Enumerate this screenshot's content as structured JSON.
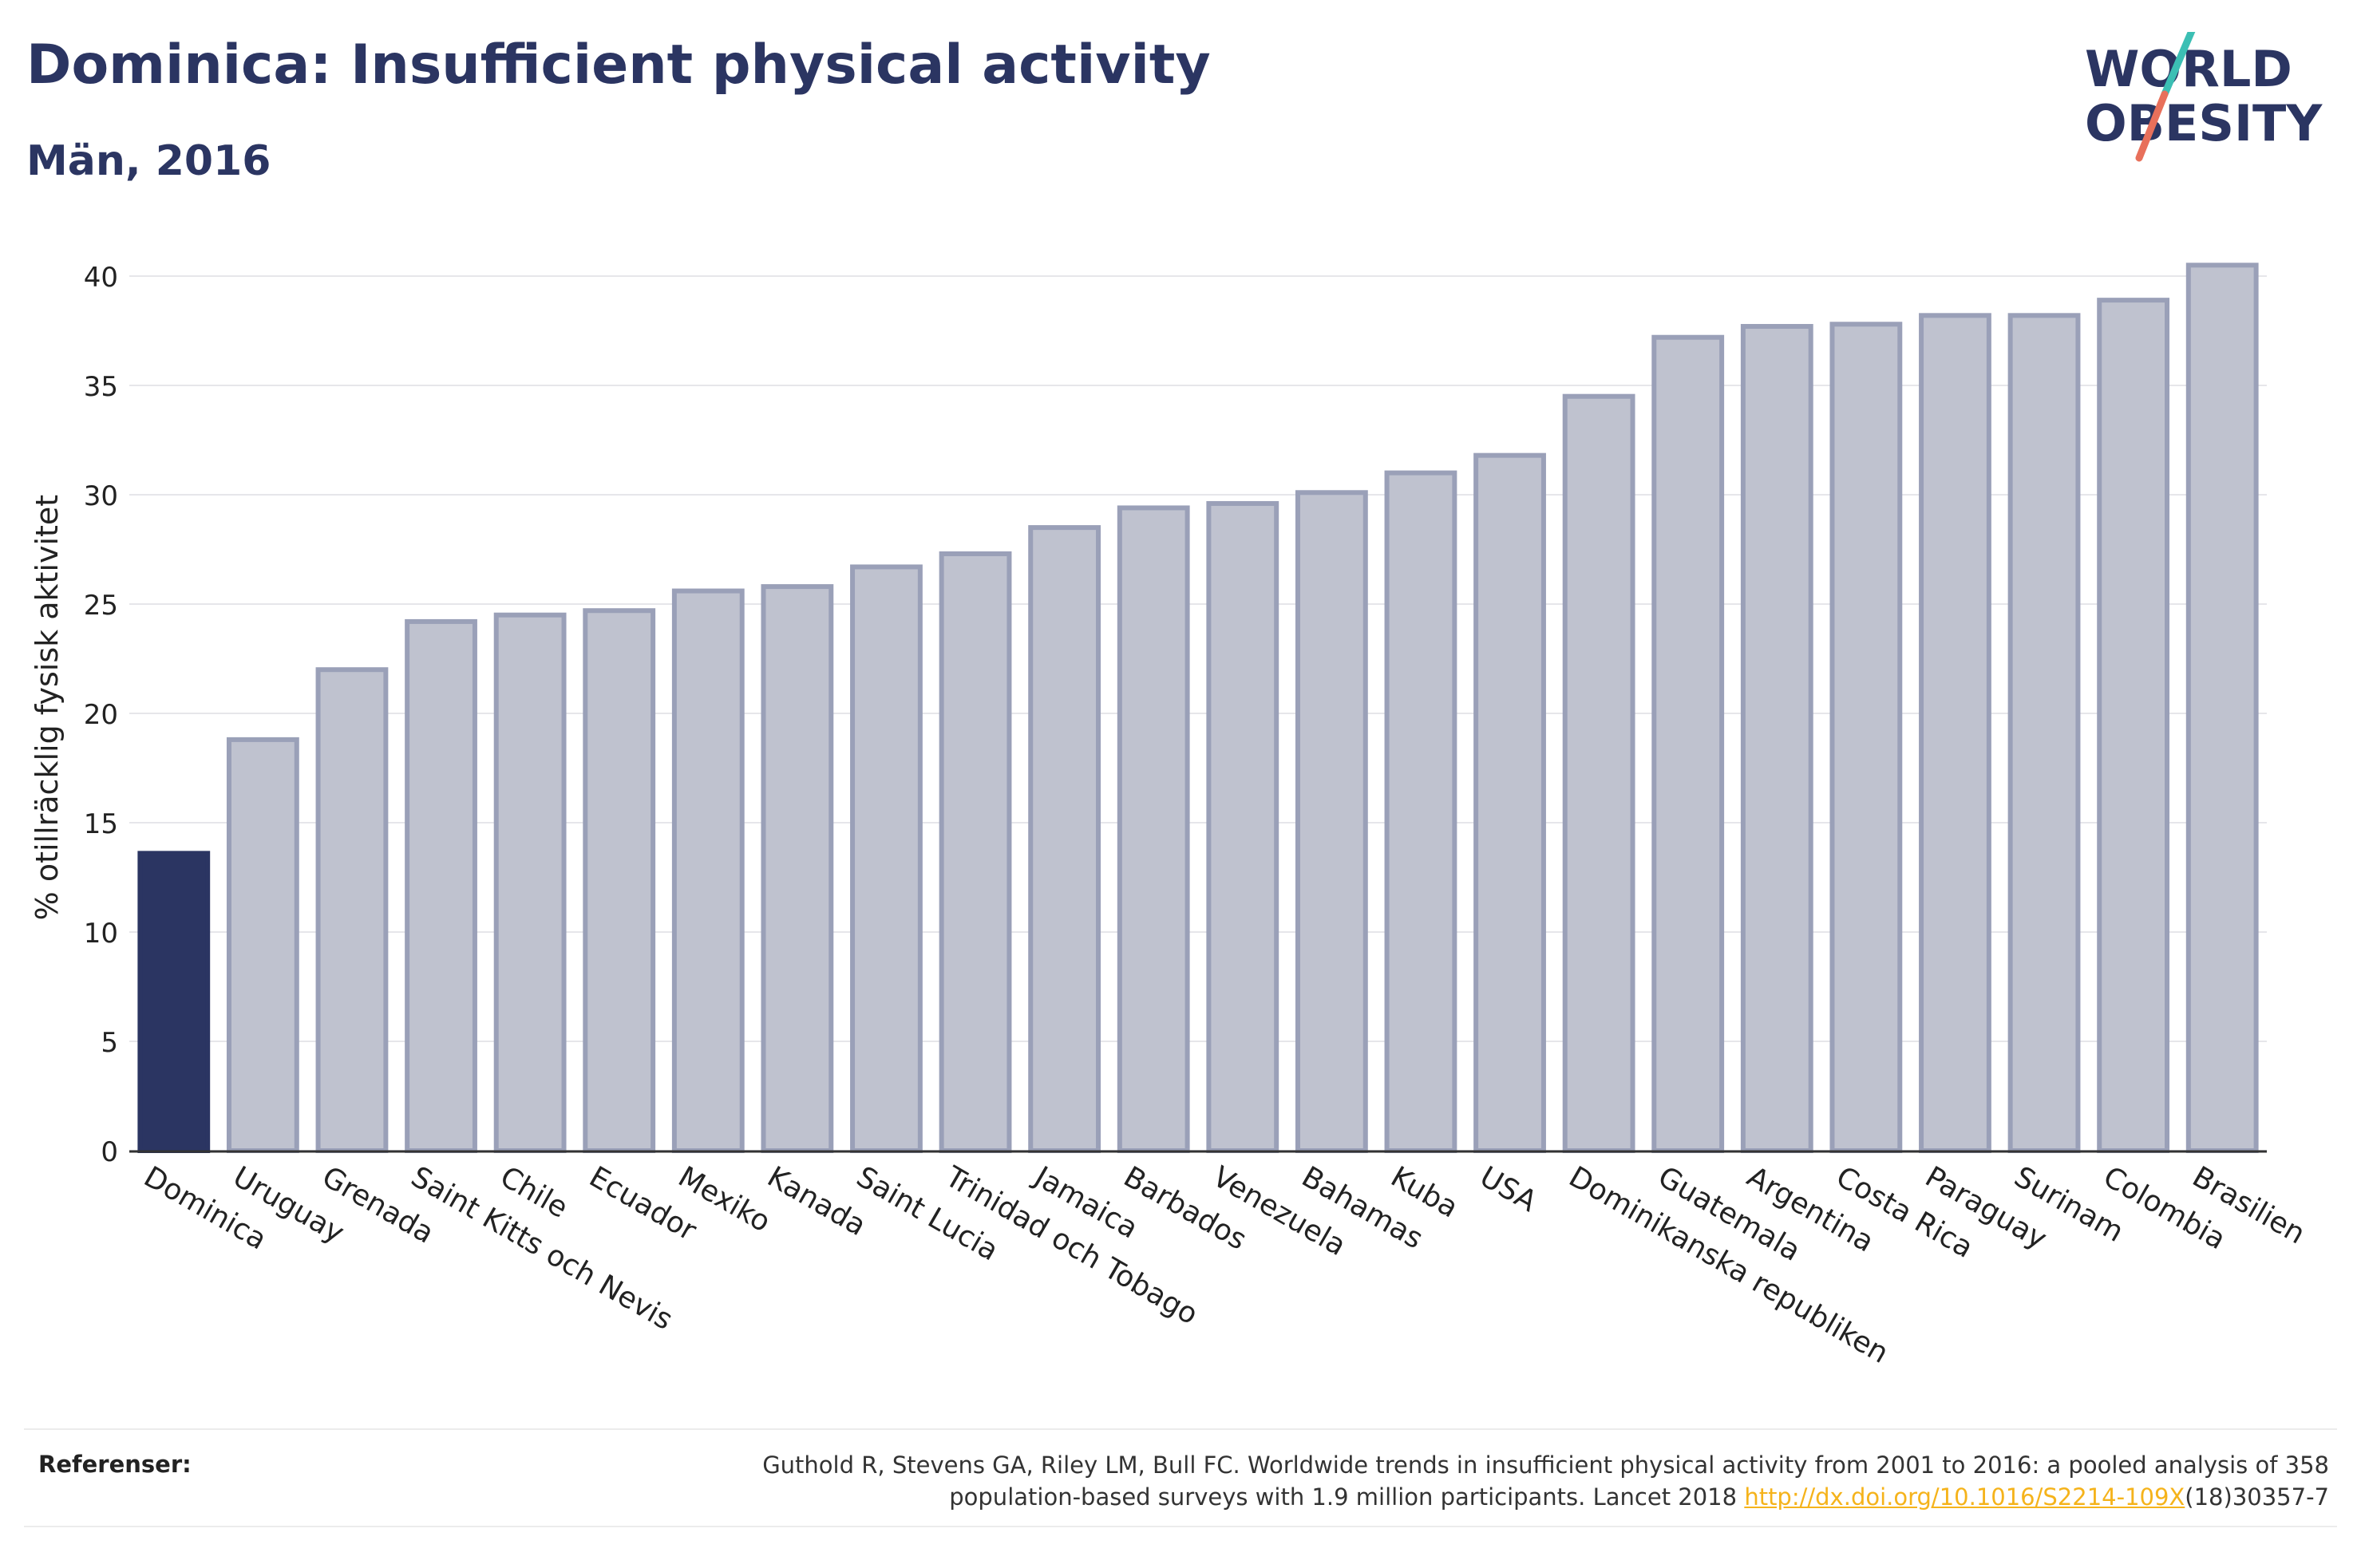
{
  "header": {
    "title": "Dominica: Insufficient physical activity",
    "subtitle": "Män, 2016"
  },
  "logo": {
    "line1": "WORLD",
    "line2": "OBESITY",
    "accent_teal": "#3cbfb4",
    "accent_red": "#e8705b"
  },
  "colors": {
    "highlight": "#2b3562",
    "bar_fill": "#bfc2cf",
    "bar_stroke": "#9aa0b8",
    "text": "#2b3562"
  },
  "chart_data": {
    "type": "bar",
    "ylabel": "% otillräcklig fysisk aktivitet",
    "ylim": [
      0,
      42
    ],
    "yticks": [
      0,
      5,
      10,
      15,
      20,
      25,
      30,
      35,
      40
    ],
    "grid": true,
    "highlight_category": "Dominica",
    "categories": [
      "Dominica",
      "Uruguay",
      "Grenada",
      "Saint Kitts och Nevis",
      "Chile",
      "Ecuador",
      "Mexiko",
      "Kanada",
      "Saint Lucia",
      "Trinidad och Tobago",
      "Jamaica",
      "Barbados",
      "Venezuela",
      "Bahamas",
      "Kuba",
      "USA",
      "Dominikanska republiken",
      "Guatemala",
      "Argentina",
      "Costa Rica",
      "Paraguay",
      "Surinam",
      "Colombia",
      "Brasilien"
    ],
    "values": [
      13.6,
      18.8,
      22.0,
      24.2,
      24.5,
      24.7,
      25.6,
      25.8,
      26.7,
      27.3,
      28.5,
      29.4,
      29.6,
      30.1,
      31.0,
      31.8,
      34.5,
      37.2,
      37.7,
      37.8,
      38.2,
      38.2,
      38.9,
      40.5
    ]
  },
  "references": {
    "label": "Referenser:",
    "line1": "Guthold R, Stevens GA, Riley LM, Bull FC. Worldwide trends in insufficient physical activity from 2001 to 2016: a pooled analysis of 358",
    "line2_pre": "population-based surveys with 1.9 million participants. Lancet 2018 ",
    "link": "http://dx.doi.org/10.1016/S2214-109X",
    "line2_post": "(18)30357-7"
  }
}
